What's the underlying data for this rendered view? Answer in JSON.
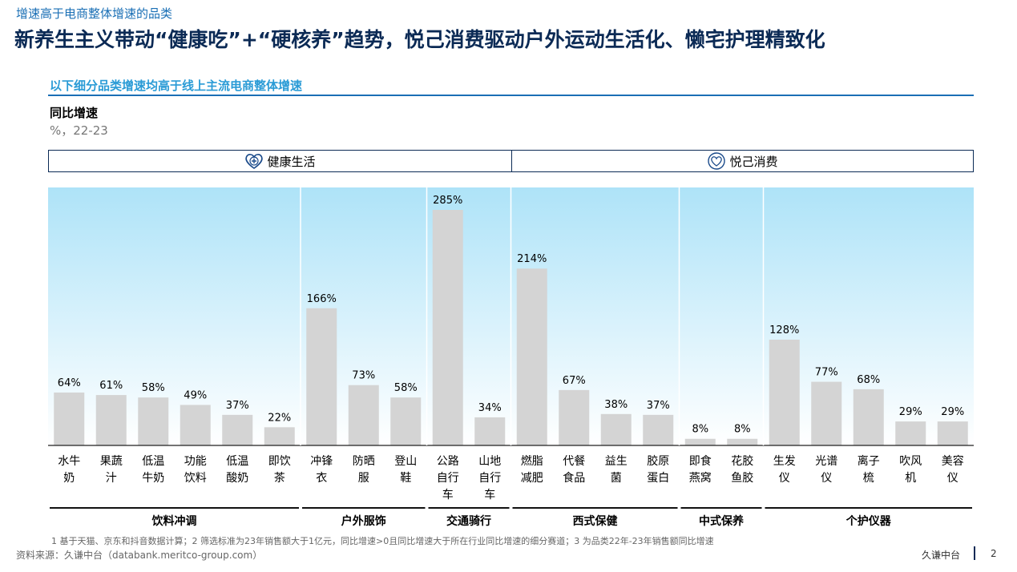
{
  "header": {
    "kicker": "增速高于电商整体增速的品类",
    "title": "新养生主义带动“健康吃”+“硬核养”趋势，悦己消费驱动户外运动生活化、懒宅护理精致化"
  },
  "subtitle": "以下细分品类增速均高于线上主流电商整体增速",
  "sections": [
    {
      "label": "健康生活",
      "icon": "heart-plus-icon"
    },
    {
      "label": "悦己消费",
      "icon": "heart-smile-icon"
    }
  ],
  "footer": {
    "note": "1  基于天猫、京东和抖音数据计算；2  筛选标准为23年销售额大于1亿元，同比增速>0且同比增速大于所在行业同比增速的细分赛道；3  为品类22年-23年销售额同比增速",
    "source": "资料来源：久谦中台（databank.meritco-group.com）",
    "brand": "久谦中台",
    "page": "2"
  },
  "colors": {
    "bar": "#d4d4d4",
    "accent": "#0b2a55",
    "bg_top": "#aee3f8"
  },
  "chart_data": {
    "type": "bar",
    "ylabel": "同比增速",
    "yunit": "%，22-23",
    "ylim": [
      0,
      300
    ],
    "categories": [
      [
        "水牛",
        "奶"
      ],
      [
        "果蔬",
        "汁"
      ],
      [
        "低温",
        "牛奶"
      ],
      [
        "功能",
        "饮料"
      ],
      [
        "低温",
        "酸奶"
      ],
      [
        "即饮",
        "茶"
      ],
      [
        "冲锋",
        "衣"
      ],
      [
        "防晒",
        "服"
      ],
      [
        "登山",
        "鞋"
      ],
      [
        "公路",
        "自行",
        "车"
      ],
      [
        "山地",
        "自行",
        "车"
      ],
      [
        "燃脂",
        "减肥"
      ],
      [
        "代餐",
        "食品"
      ],
      [
        "益生",
        "菌"
      ],
      [
        "胶原",
        "蛋白"
      ],
      [
        "即食",
        "燕窝"
      ],
      [
        "花胶",
        "鱼胶"
      ],
      [
        "生发",
        "仪"
      ],
      [
        "光谱",
        "仪"
      ],
      [
        "离子",
        "梳"
      ],
      [
        "吹风",
        "机"
      ],
      [
        "美容",
        "仪"
      ]
    ],
    "values": [
      64,
      61,
      58,
      49,
      37,
      22,
      166,
      73,
      58,
      285,
      34,
      214,
      67,
      38,
      37,
      8,
      8,
      128,
      77,
      68,
      29,
      29
    ],
    "data_labels": [
      "64%",
      "61%",
      "58%",
      "49%",
      "37%",
      "22%",
      "166%",
      "73%",
      "58%",
      "285%",
      "34%",
      "214%",
      "67%",
      "38%",
      "37%",
      "8%",
      "8%",
      "128%",
      "77%",
      "68%",
      "29%",
      "29%"
    ],
    "groups": [
      {
        "name": "饮料冲调",
        "count": 6
      },
      {
        "name": "户外服饰",
        "count": 3
      },
      {
        "name": "交通骑行",
        "count": 2
      },
      {
        "name": "西式保健",
        "count": 4
      },
      {
        "name": "中式保养",
        "count": 2
      },
      {
        "name": "个护仪器",
        "count": 5
      }
    ]
  }
}
